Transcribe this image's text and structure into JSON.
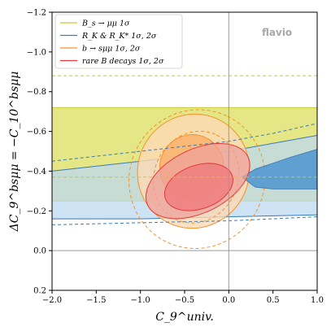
{
  "chart_data": {
    "type": "contour",
    "watermark": "flavio",
    "xlabel": "C_9^univ.",
    "ylabel": "ΔC_9^bsμμ = −C_10^bsμμ",
    "xlim": [
      -2.0,
      1.0
    ],
    "ylim": [
      0.2,
      -1.2
    ],
    "x_ticks": [
      "−2.0",
      "−1.5",
      "−1.0",
      "−0.5",
      "0.0",
      "0.5",
      "1.0"
    ],
    "y_ticks": [
      "0.2",
      "0.0",
      "−0.2",
      "−0.4",
      "−0.6",
      "−0.8",
      "−1.0",
      "−1.2"
    ],
    "x_tick_values": [
      -2.0,
      -1.5,
      -1.0,
      -0.5,
      0.0,
      0.5,
      1.0
    ],
    "y_tick_values": [
      0.2,
      0.0,
      -0.2,
      -0.4,
      -0.6,
      -0.8,
      -1.0,
      -1.2
    ],
    "reference_lines": {
      "x": 0.0,
      "y": 0.0
    },
    "legend_position": "top-left",
    "legend": [
      "B_s → μμ 1σ",
      "R_K & R_K* 1σ, 2σ",
      "b → sμμ 1σ, 2σ",
      "rare B decays 1σ, 2σ"
    ],
    "series": [
      {
        "name": "B_s → μμ 1σ",
        "color": "#c9c832",
        "fill": "#e0e270",
        "band_1sigma": [
          -0.72,
          -0.25
        ],
        "band_2sigma_dashed": [
          -0.88,
          -0.37
        ]
      },
      {
        "name": "R_K & R_K* 1σ, 2σ",
        "color": "#3a7bb8",
        "fill_2sigma": "#bcd8ef",
        "fill_1sigma": "#5b9dd1",
        "sigma1_lower": {
          "x": [
            0.15,
            0.3,
            0.5,
            0.7,
            1.0
          ],
          "y": [
            -0.37,
            -0.32,
            -0.31,
            -0.31,
            -0.31
          ]
        },
        "sigma1_upper": {
          "x": [
            0.15,
            0.3,
            0.5,
            0.7,
            1.0
          ],
          "y": [
            -0.37,
            -0.41,
            -0.44,
            -0.47,
            -0.51
          ]
        },
        "sigma2_lower": {
          "x": [
            -2.0,
            -1.0,
            0.0,
            1.0
          ],
          "y": [
            -0.16,
            -0.16,
            -0.17,
            -0.18
          ]
        },
        "sigma2_upper": {
          "x": [
            -2.0,
            -1.0,
            0.0,
            0.5,
            1.0
          ],
          "y": [
            -0.4,
            -0.45,
            -0.5,
            -0.54,
            -0.58
          ]
        },
        "dashed_upper": {
          "x": [
            -2.0,
            -1.0,
            0.0,
            0.5,
            1.0
          ],
          "y": [
            -0.45,
            -0.5,
            -0.55,
            -0.59,
            -0.64
          ]
        },
        "dashed_lower": {
          "x": [
            -2.0,
            -1.0,
            0.0,
            1.0
          ],
          "y": [
            -0.13,
            -0.14,
            -0.15,
            -0.17
          ]
        }
      },
      {
        "name": "b → sμμ 1σ, 2σ",
        "color": "#f5912b",
        "fill_2sigma": "#fdd9b5",
        "fill_1sigma": "#fbb36e",
        "ellipse_1sigma": {
          "cx": -0.42,
          "cy": -0.42,
          "rx": 0.37,
          "ry": 0.16,
          "rotation_deg": -64
        },
        "ellipse_2sigma": {
          "cx": -0.4,
          "cy": -0.4,
          "rx": 0.65,
          "ry": 0.28,
          "rotation_deg": -64
        },
        "ellipse_dashed": {
          "cx": -0.37,
          "cy": -0.37,
          "rx": 0.53,
          "ry": 0.21,
          "rotation_deg": -64
        },
        "ellipse_dashed_outer": {
          "cx": -0.36,
          "cy": -0.36,
          "rx": 0.79,
          "ry": 0.34,
          "rotation_deg": -64
        }
      },
      {
        "name": "rare B decays 1σ, 2σ",
        "color": "#e23a3a",
        "fill_2sigma": "#eea29b",
        "fill_1sigma": "#ee8282",
        "ellipse_1sigma": {
          "cx": -0.34,
          "cy": -0.32,
          "rx": 0.4,
          "ry": 0.11,
          "rotation_deg": -19
        },
        "ellipse_2sigma": {
          "cx": -0.35,
          "cy": -0.35,
          "rx": 0.63,
          "ry": 0.16,
          "rotation_deg": -26
        }
      }
    ]
  }
}
